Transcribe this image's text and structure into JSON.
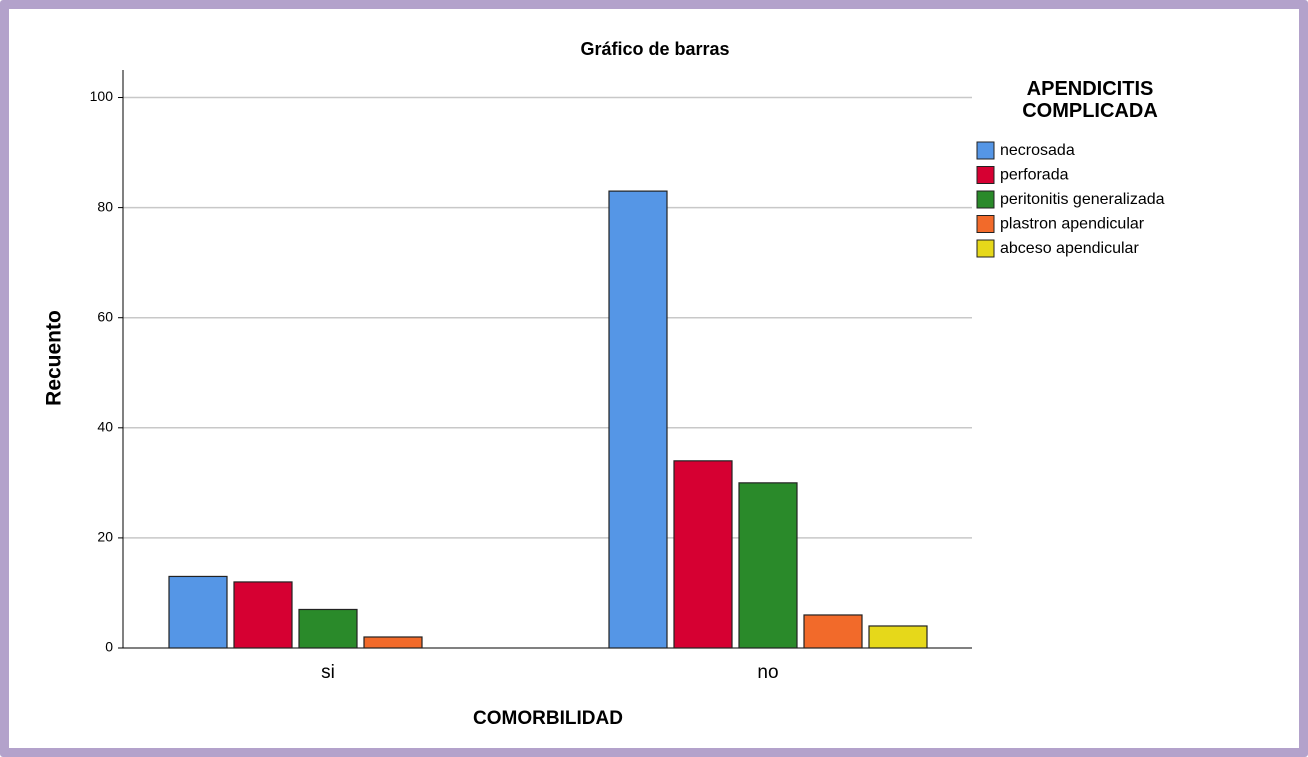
{
  "chart_data": {
    "type": "bar",
    "title": "Gráfico de barras",
    "x_label": "COMORBILIDAD",
    "y_label": "Recuento",
    "legend_title": "APENDICITIS COMPLICADA",
    "categories": [
      "si",
      "no"
    ],
    "series": [
      {
        "name": "necrosada",
        "color": "#5596e6",
        "values": [
          13,
          83
        ]
      },
      {
        "name": "perforada",
        "color": "#d60032",
        "values": [
          12,
          34
        ]
      },
      {
        "name": "peritonitis generalizada",
        "color": "#2a8a2a",
        "values": [
          7,
          30
        ]
      },
      {
        "name": "plastron apendicular",
        "color": "#f26a2a",
        "values": [
          2,
          6
        ]
      },
      {
        "name": "abceso apendicular",
        "color": "#e6d81a",
        "values": [
          null,
          4
        ]
      }
    ],
    "ylim": [
      0,
      105
    ],
    "yticks": [
      0,
      20,
      40,
      60,
      80,
      100
    ],
    "grid": true,
    "legend": "right"
  }
}
